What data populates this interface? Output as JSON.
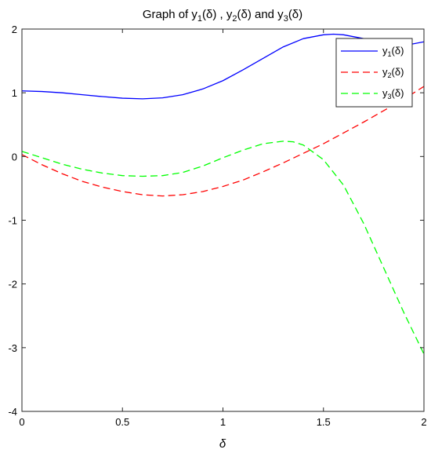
{
  "chart_data": {
    "type": "line",
    "title": {
      "pre": "Graph of y",
      "s1": "1",
      "mid1": "(δ) , y",
      "s2": "2",
      "mid2": "(δ) and y",
      "s3": "3",
      "post": "(δ)"
    },
    "xlabel": "δ",
    "xlim": [
      0,
      2
    ],
    "ylim": [
      -4,
      2
    ],
    "xticks": [
      0,
      0.5,
      1,
      1.5,
      2
    ],
    "xtick_labels": [
      "0",
      "0.5",
      "1",
      "1.5",
      "2"
    ],
    "yticks": [
      -4,
      -3,
      -2,
      -1,
      0,
      1,
      2
    ],
    "ytick_labels": [
      "-4",
      "-3",
      "-2",
      "-1",
      "0",
      "1",
      "2"
    ],
    "grid": false,
    "legend": "top-right",
    "series": [
      {
        "name": "y1(δ)",
        "base": "y",
        "sub": "1",
        "arg": "(δ)",
        "color": "#0000ff",
        "style": "solid",
        "x": [
          0,
          0.1,
          0.2,
          0.3,
          0.4,
          0.5,
          0.6,
          0.7,
          0.8,
          0.9,
          1.0,
          1.1,
          1.2,
          1.3,
          1.4,
          1.5,
          1.55,
          1.6,
          1.7,
          1.8,
          1.9,
          2.0
        ],
        "y": [
          1.03,
          1.02,
          1.0,
          0.97,
          0.94,
          0.915,
          0.905,
          0.92,
          0.97,
          1.06,
          1.19,
          1.36,
          1.54,
          1.72,
          1.85,
          1.91,
          1.92,
          1.91,
          1.85,
          1.78,
          1.74,
          1.8
        ]
      },
      {
        "name": "y2(δ)",
        "base": "y",
        "sub": "2",
        "arg": "(δ)",
        "color": "#ff0000",
        "style": "dashed",
        "x": [
          0,
          0.1,
          0.2,
          0.3,
          0.4,
          0.5,
          0.6,
          0.7,
          0.8,
          0.9,
          1.0,
          1.1,
          1.2,
          1.3,
          1.4,
          1.5,
          1.6,
          1.7,
          1.8,
          1.9,
          2.0
        ],
        "y": [
          0.03,
          -0.13,
          -0.27,
          -0.39,
          -0.48,
          -0.55,
          -0.6,
          -0.62,
          -0.6,
          -0.55,
          -0.47,
          -0.37,
          -0.24,
          -0.1,
          0.05,
          0.2,
          0.37,
          0.54,
          0.72,
          0.9,
          1.1
        ]
      },
      {
        "name": "y3(δ)",
        "base": "y",
        "sub": "3",
        "arg": "(δ)",
        "color": "#00ff00",
        "style": "dashed",
        "x": [
          0,
          0.1,
          0.2,
          0.3,
          0.4,
          0.5,
          0.6,
          0.7,
          0.8,
          0.9,
          1.0,
          1.1,
          1.2,
          1.3,
          1.35,
          1.4,
          1.5,
          1.6,
          1.7,
          1.8,
          1.9,
          2.0
        ],
        "y": [
          0.08,
          -0.02,
          -0.12,
          -0.2,
          -0.26,
          -0.3,
          -0.31,
          -0.3,
          -0.25,
          -0.15,
          -0.02,
          0.1,
          0.2,
          0.24,
          0.23,
          0.18,
          -0.05,
          -0.45,
          -1.05,
          -1.75,
          -2.45,
          -3.1
        ]
      }
    ]
  }
}
